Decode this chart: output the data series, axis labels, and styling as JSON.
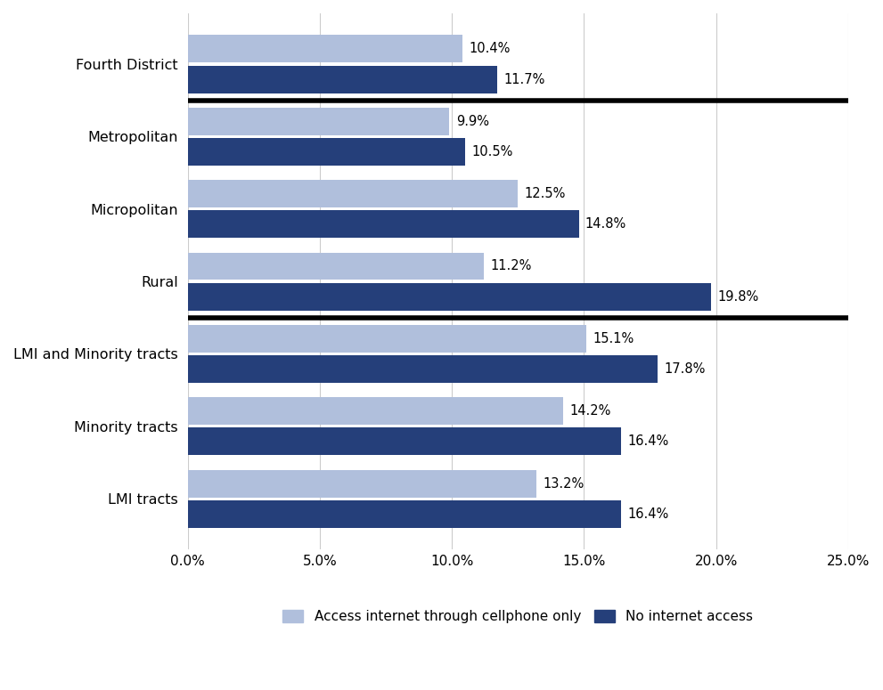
{
  "categories": [
    "LMI tracts",
    "Minority tracts",
    "LMI and Minority tracts",
    "Rural",
    "Micropolitan",
    "Metropolitan",
    "Fourth District"
  ],
  "cellphone_only": [
    13.2,
    14.2,
    15.1,
    11.2,
    12.5,
    9.9,
    10.4
  ],
  "no_internet": [
    16.4,
    16.4,
    17.8,
    19.8,
    14.8,
    10.5,
    11.7
  ],
  "cellphone_color": "#b0bfdc",
  "no_internet_color": "#253f7a",
  "bar_height": 0.38,
  "bar_gap": 0.04,
  "xlim": [
    0,
    25
  ],
  "xticks": [
    0,
    5,
    10,
    15,
    20,
    25
  ],
  "xtick_labels": [
    "0.0%",
    "5.0%",
    "10.0%",
    "15.0%",
    "20.0%",
    "25.0%"
  ],
  "legend_cellphone": "Access internet through cellphone only",
  "legend_no_internet": "No internet access",
  "background_color": "#ffffff",
  "grid_color": "#cccccc",
  "label_fontsize": 11.5,
  "tick_fontsize": 11,
  "legend_fontsize": 11,
  "value_fontsize": 10.5,
  "divider_lw": 4
}
